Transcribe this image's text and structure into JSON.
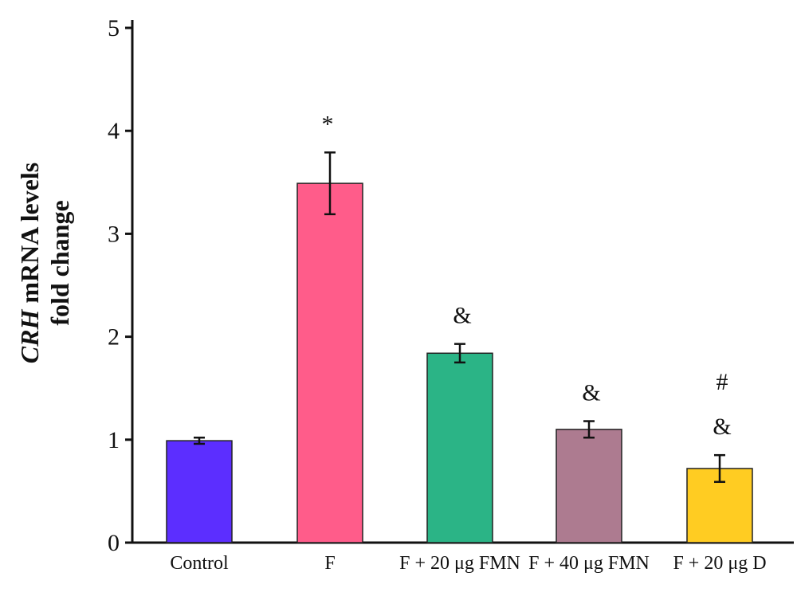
{
  "chart_data": {
    "type": "bar",
    "title": "",
    "xlabel": "",
    "ylabel_parts": {
      "italic": "CRH",
      "rest": " mRNA levels"
    },
    "ylabel_line2": "fold change",
    "ylim": [
      0,
      5
    ],
    "yticks": [
      "0",
      "1",
      "2",
      "3",
      "4",
      "5"
    ],
    "categories": [
      "Control",
      "F",
      "F + 20 μg FMN",
      "F + 40 μg FMN",
      "F + 20 μg D"
    ],
    "values": [
      0.99,
      3.49,
      1.84,
      1.1,
      0.72
    ],
    "errors": [
      0.03,
      0.3,
      0.09,
      0.08,
      0.13
    ],
    "colors": [
      "#5c2eff",
      "#ff5c8a",
      "#2bb486",
      "#ad7b90",
      "#ffcc22"
    ],
    "annotations": [
      [],
      [
        "*"
      ],
      [
        "&"
      ],
      [
        "&"
      ],
      [
        "&",
        "#"
      ]
    ],
    "grid": false
  }
}
